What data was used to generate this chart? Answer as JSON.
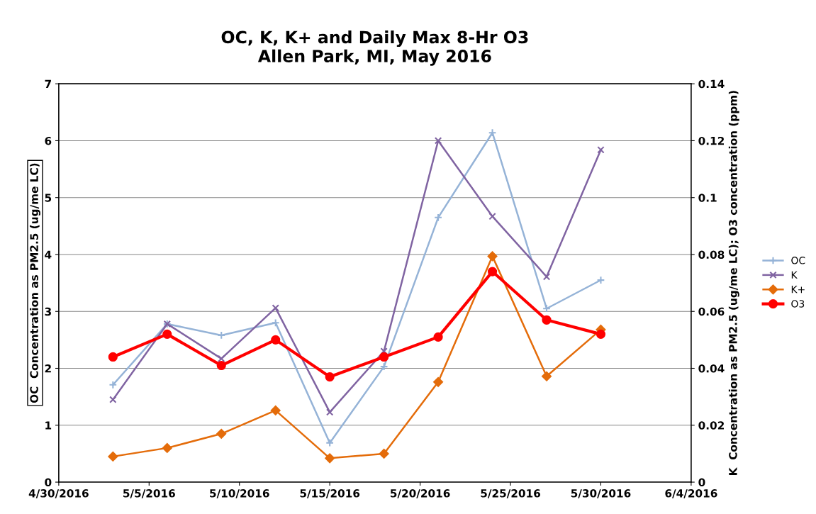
{
  "chart_data": {
    "type": "line",
    "title": "OC, K, K+ and Daily Max 8-Hr O3\nAllen Park, MI, May 2016",
    "ylabel": "OC  Concentration as PM2.5 (ug/me LC)",
    "y2label": "K  Concentration as PM2.5 (ug/me LC); O3 concentration (ppm)",
    "x": [
      "2016-05-03",
      "2016-05-06",
      "2016-05-09",
      "2016-05-12",
      "2016-05-15",
      "2016-05-18",
      "2016-05-21",
      "2016-05-24",
      "2016-05-27",
      "2016-05-30"
    ],
    "series": [
      {
        "name": "OC",
        "color": "#95b3d7",
        "marker": "plus",
        "values": [
          1.71,
          2.78,
          2.58,
          2.8,
          0.69,
          2.03,
          4.65,
          6.14,
          3.05,
          3.55
        ]
      },
      {
        "name": "K",
        "color": "#8064a2",
        "marker": "cross",
        "values": [
          1.45,
          2.78,
          2.17,
          3.06,
          1.23,
          2.3,
          6.0,
          4.67,
          3.61,
          5.84
        ]
      },
      {
        "name": "K+",
        "color": "#e46c0a",
        "marker": "diamond",
        "values": [
          0.45,
          0.6,
          0.85,
          1.26,
          0.42,
          0.5,
          1.76,
          3.97,
          1.86,
          2.68
        ]
      },
      {
        "name": "O3",
        "color": "#ff0000",
        "marker": "circle",
        "axis": "y2",
        "values": [
          0.044,
          0.052,
          0.041,
          0.05,
          0.037,
          0.044,
          0.051,
          0.074,
          0.057,
          0.052
        ]
      }
    ],
    "xlim": [
      "2016-04-30",
      "2016-06-04"
    ],
    "xticks": [
      {
        "value": "2016-04-30",
        "label": "4/30/2016"
      },
      {
        "value": "2016-05-05",
        "label": "5/5/2016"
      },
      {
        "value": "2016-05-10",
        "label": "5/10/2016"
      },
      {
        "value": "2016-05-15",
        "label": "5/15/2016"
      },
      {
        "value": "2016-05-20",
        "label": "5/20/2016"
      },
      {
        "value": "2016-05-25",
        "label": "5/25/2016"
      },
      {
        "value": "2016-05-30",
        "label": "5/30/2016"
      },
      {
        "value": "2016-06-04",
        "label": "6/4/2016"
      }
    ],
    "ylim": [
      0,
      7
    ],
    "yticks": [
      0,
      1,
      2,
      3,
      4,
      5,
      6,
      7
    ],
    "y2lim": [
      0,
      0.14
    ],
    "y2ticks": [
      0,
      0.02,
      0.04,
      0.06,
      0.08,
      0.1,
      0.12,
      0.14
    ],
    "grid": "y",
    "legend": "right"
  }
}
